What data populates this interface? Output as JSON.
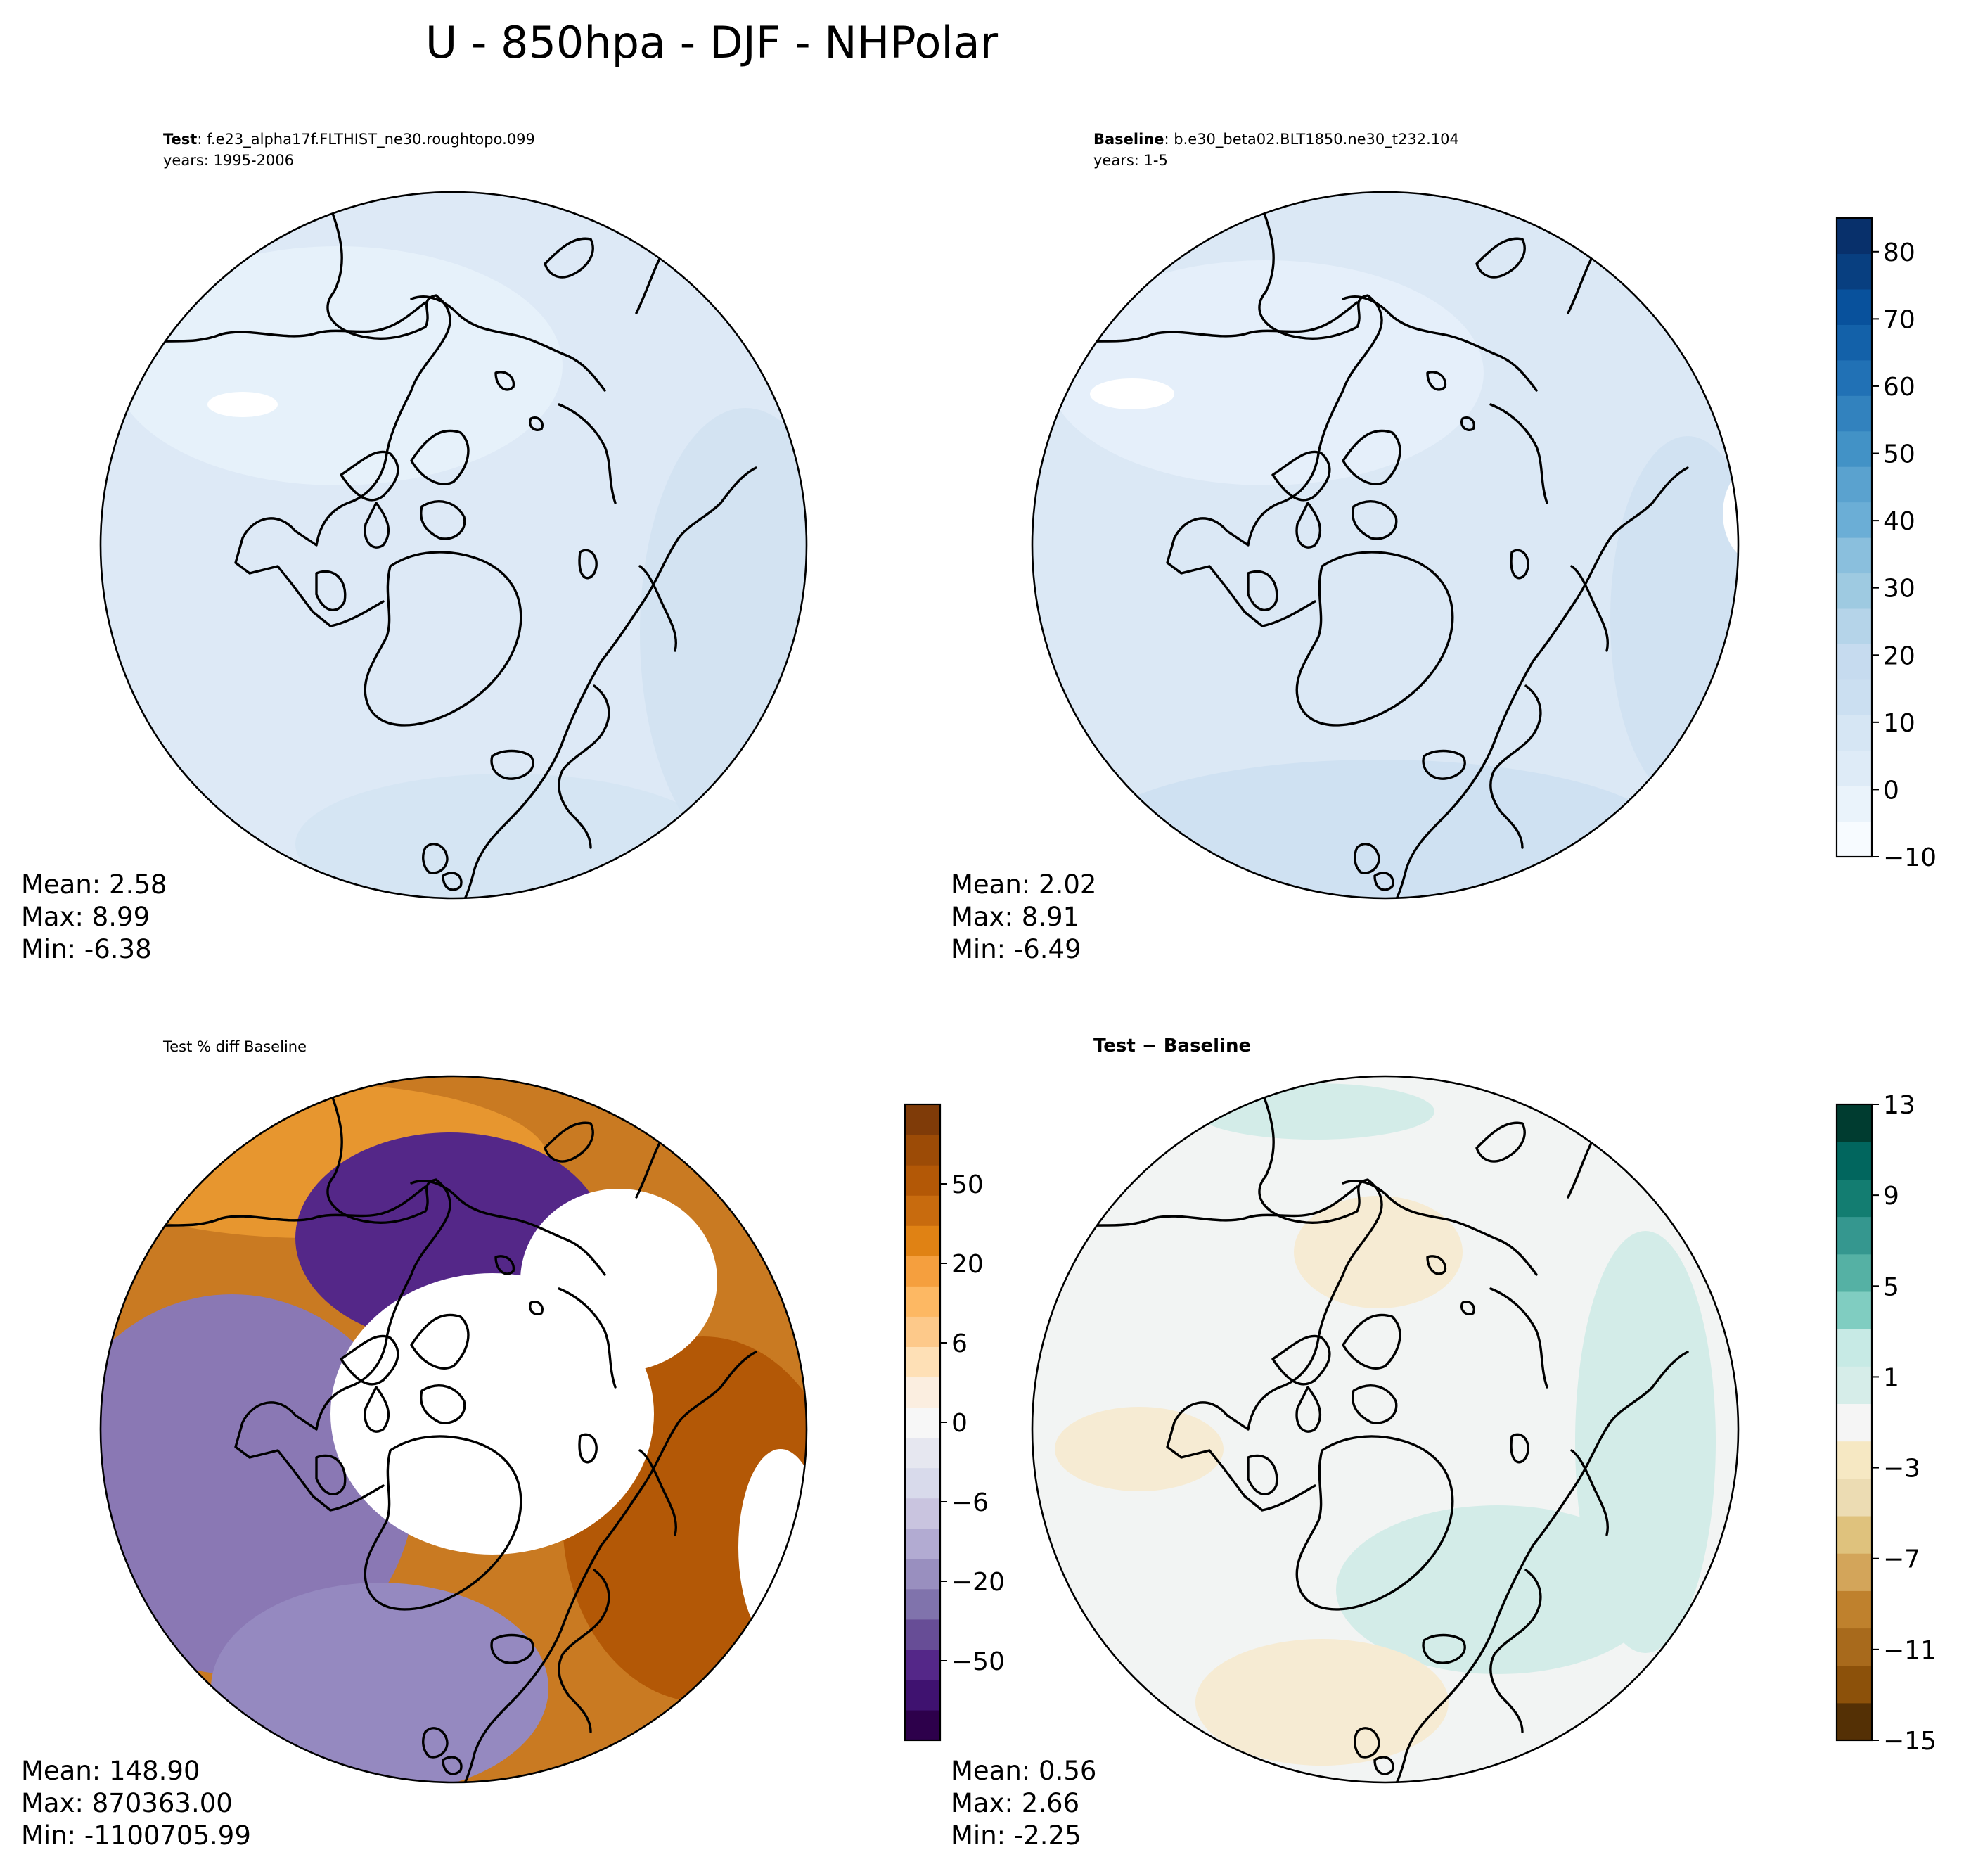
{
  "figure": {
    "title": "U - 850hpa - DJF - NHPolar"
  },
  "panels": [
    {
      "id": "test",
      "title_bold": "Test",
      "title_rest": ": f.e23_alpha17f.FLTHIST_ne30.roughtopo.099",
      "subtitle": "years: 1995-2006",
      "stats": {
        "mean": "Mean:  2.58",
        "max": "Max:  8.99",
        "min": "Min: -6.38"
      },
      "fill_color": "#dde9f6",
      "patch_color": "#d2e2f2"
    },
    {
      "id": "baseline",
      "title_bold": "Baseline",
      "title_rest": ": b.e30_beta02.BLT1850.ne30_t232.104",
      "subtitle": "years: 1-5",
      "stats": {
        "mean": "Mean:  2.02",
        "max": "Max:  8.91",
        "min": "Min: -6.49"
      },
      "fill_color": "#dbe8f5",
      "patch_color": "#cddff1"
    },
    {
      "id": "pctdiff",
      "title_bold": "",
      "title_rest": "Test % diff Baseline",
      "subtitle": "",
      "stats": {
        "mean": "Mean: 148.90",
        "max": "Max: 870363.00",
        "min": "Min: -1100705.99"
      },
      "fill_color": "#c97a22",
      "patch_color": "#8a78b4"
    },
    {
      "id": "diff",
      "title_bold": "Test − Baseline",
      "title_rest": "",
      "subtitle": "",
      "stats": {
        "mean": "Mean:  0.56",
        "max": "Max:  2.66",
        "min": "Min: -2.25"
      },
      "fill_color": "#f2f4f3",
      "patch_color": "#d3ece8"
    }
  ],
  "colorbars": [
    {
      "id": "cb-main",
      "colors": [
        "#f7fbff",
        "#eaf3fb",
        "#deebf7",
        "#d6e6f4",
        "#cbdff1",
        "#c6dbef",
        "#b5d4e9",
        "#9ecae1",
        "#8abfdd",
        "#6baed6",
        "#5aa2cf",
        "#4292c6",
        "#3282be",
        "#2171b5",
        "#1361a9",
        "#08519c",
        "#083f80",
        "#08306b"
      ],
      "ticks": [
        {
          "label": "−10",
          "value": -10
        },
        {
          "label": "0",
          "value": 0
        },
        {
          "label": "10",
          "value": 10
        },
        {
          "label": "20",
          "value": 20
        },
        {
          "label": "30",
          "value": 30
        },
        {
          "label": "40",
          "value": 40
        },
        {
          "label": "50",
          "value": 50
        },
        {
          "label": "60",
          "value": 60
        },
        {
          "label": "70",
          "value": 70
        },
        {
          "label": "80",
          "value": 80
        }
      ]
    },
    {
      "id": "cb-pct",
      "colors": [
        "#2d004b",
        "#3f1270",
        "#542788",
        "#674d96",
        "#8073ac",
        "#998fbf",
        "#b2abd2",
        "#c9c4df",
        "#d8daeb",
        "#e6e7f0",
        "#f7f7f7",
        "#fbeee0",
        "#fee0b6",
        "#fdc98a",
        "#fdb863",
        "#f59f3e",
        "#e08214",
        "#c86b0e",
        "#b35806",
        "#9c4b06",
        "#7f3b08"
      ],
      "ticks": [
        {
          "label": "−50",
          "value": -50
        },
        {
          "label": "−20",
          "value": -20
        },
        {
          "label": "−6",
          "value": -6
        },
        {
          "label": "0",
          "value": 0
        },
        {
          "label": "6",
          "value": 6
        },
        {
          "label": "20",
          "value": 20
        },
        {
          "label": "50",
          "value": 50
        }
      ]
    },
    {
      "id": "cb-diff",
      "colors": [
        "#543005",
        "#8c510a",
        "#a86a1c",
        "#bf812d",
        "#d3a55a",
        "#dfc27d",
        "#ecdcb3",
        "#f6e8c3",
        "#f5f5f5",
        "#d6ede9",
        "#c7eae5",
        "#80cdc1",
        "#55b1a4",
        "#35978f",
        "#137d71",
        "#01665e",
        "#003c30"
      ],
      "ticks": [
        {
          "label": "−15",
          "value": -15
        },
        {
          "label": "−11",
          "value": -11
        },
        {
          "label": "−7",
          "value": -7
        },
        {
          "label": "−3",
          "value": -3
        },
        {
          "label": "1",
          "value": 1
        },
        {
          "label": "5",
          "value": 5
        },
        {
          "label": "9",
          "value": 9
        },
        {
          "label": "13",
          "value": 13
        }
      ]
    }
  ],
  "chart_data": [
    {
      "type": "heatmap",
      "title": "Test: f.e23_alpha17f.FLTHIST_ne30.roughtopo.099",
      "subtitle": "years: 1995-2006",
      "stats": {
        "mean": 2.58,
        "max": 8.99,
        "min": -6.38
      },
      "colorbar_range": [
        -10,
        85
      ],
      "colorbar_ticks": [
        -10,
        0,
        10,
        20,
        30,
        40,
        50,
        60,
        70,
        80
      ]
    },
    {
      "type": "heatmap",
      "title": "Baseline: b.e30_beta02.BLT1850.ne30_t232.104",
      "subtitle": "years: 1-5",
      "stats": {
        "mean": 2.02,
        "max": 8.91,
        "min": -6.49
      },
      "colorbar_range": [
        -10,
        85
      ],
      "colorbar_ticks": [
        -10,
        0,
        10,
        20,
        30,
        40,
        50,
        60,
        70,
        80
      ]
    },
    {
      "type": "heatmap",
      "title": "Test % diff Baseline",
      "stats": {
        "mean": 148.9,
        "max": 870363.0,
        "min": -1100705.99
      },
      "colorbar_ticks": [
        -50,
        -20,
        -6,
        0,
        6,
        20,
        50
      ]
    },
    {
      "type": "heatmap",
      "title": "Test − Baseline",
      "stats": {
        "mean": 0.56,
        "max": 2.66,
        "min": -2.25
      },
      "colorbar_range": [
        -15,
        13
      ],
      "colorbar_ticks": [
        -15,
        -11,
        -7,
        -3,
        1,
        5,
        9,
        13
      ]
    }
  ]
}
